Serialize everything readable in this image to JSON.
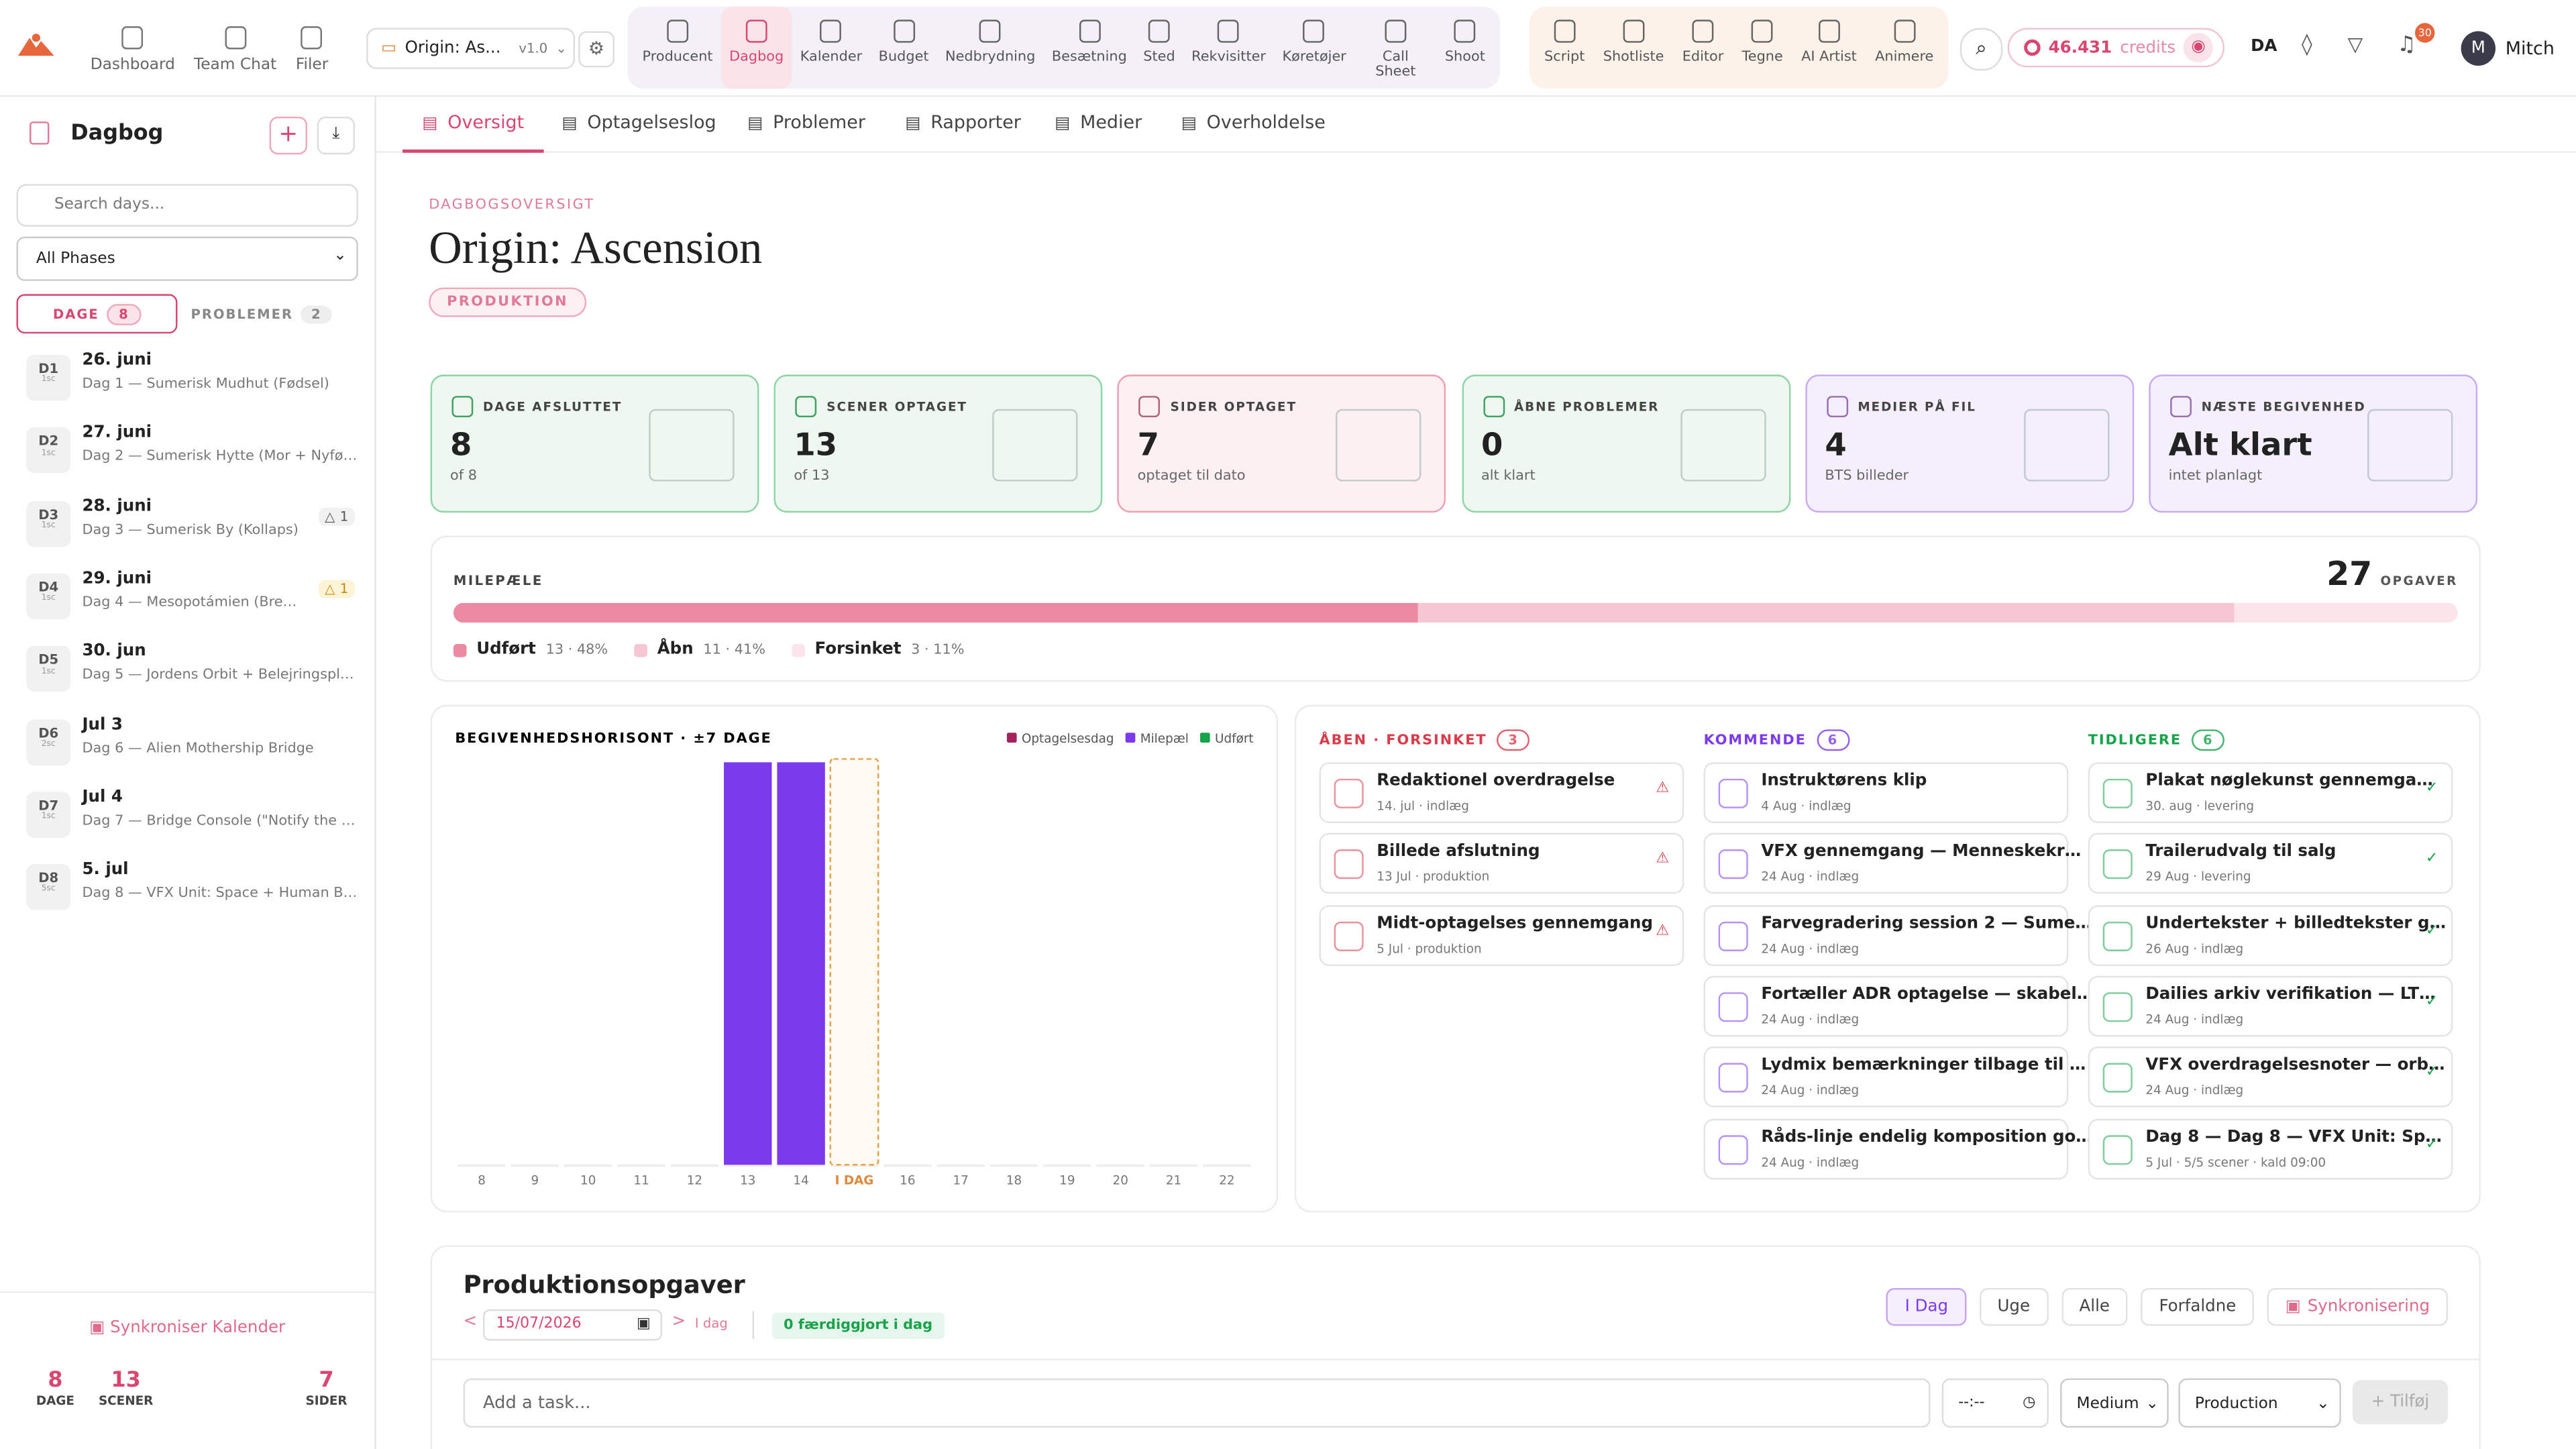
{
  "topnav": {
    "main": [
      "Dashboard",
      "Team Chat",
      "Filer"
    ],
    "project": "Origin: As...",
    "version": "v1.0",
    "tools": [
      "Producent",
      "Dagbog",
      "Kalender",
      "Budget",
      "Nedbrydning",
      "Besætning",
      "Sted",
      "Rekvisitter",
      "Køretøjer",
      "Call Sheet",
      "Shoot"
    ],
    "active_tool": 1,
    "creative": [
      "Script",
      "Shotliste",
      "Editor",
      "Tegne",
      "AI Artist",
      "Animere"
    ],
    "credits": "46.431",
    "credits_label": "credits",
    "language": "DA",
    "notifications": 30,
    "avatar": "M",
    "user": "Mitch"
  },
  "sidebar": {
    "title": "Dagbog",
    "search_placeholder": "Search days...",
    "phase": "All Phases",
    "tabs": [
      {
        "label": "DAGE",
        "count": 8
      },
      {
        "label": "PROBLEMER",
        "count": 2
      }
    ],
    "days": [
      {
        "code": "D1",
        "scenes": "1sc",
        "date": "26. juni",
        "desc": "Dag 1 — Sumerisk Mudhut (Fødsel)"
      },
      {
        "code": "D2",
        "scenes": "1sc",
        "date": "27. juni",
        "desc": "Dag 2 — Sumerisk Hytte (Mor + Nyfø…"
      },
      {
        "code": "D3",
        "scenes": "1sc",
        "date": "28. juni",
        "desc": "Dag 3 — Sumerisk By (Kollaps)",
        "issues": 1
      },
      {
        "code": "D4",
        "scenes": "1sc",
        "date": "29. juni",
        "desc": "Dag 4 — Mesopotámien (Bre…",
        "issues": 1
      },
      {
        "code": "D5",
        "scenes": "1sc",
        "date": "30. jun",
        "desc": "Dag 5 — Jordens Orbit + Belejringspl…"
      },
      {
        "code": "D6",
        "scenes": "2sc",
        "date": "Jul 3",
        "desc": "Dag 6 — Alien Mothership Bridge"
      },
      {
        "code": "D7",
        "scenes": "1sc",
        "date": "Jul 4",
        "desc": "Dag 7 — Bridge Console (\"Notify the …"
      },
      {
        "code": "D8",
        "scenes": "5sc",
        "date": "5. jul",
        "desc": "Dag 8 — VFX Unit: Space + Human B…"
      }
    ],
    "sync": "Synkroniser Kalender",
    "stats": [
      {
        "value": 8,
        "label": "DAGE"
      },
      {
        "value": 13,
        "label": "SCENER"
      },
      {
        "value": 7,
        "label": "SIDER"
      }
    ]
  },
  "subnav": {
    "tabs": [
      "Oversigt",
      "Optagelseslog",
      "Problemer",
      "Rapporter",
      "Medier",
      "Overholdelse"
    ],
    "active": 0
  },
  "header": {
    "eyebrow": "DAGBOGSOVERSIGT",
    "title": "Origin: Ascension",
    "badge": "PRODUKTION"
  },
  "cards": [
    {
      "label": "DAGE AFSLUTTET",
      "value": 8,
      "sub": "of 8",
      "color": "#8fd4a6",
      "bg": "#eef8f1"
    },
    {
      "label": "SCENER OPTAGET",
      "value": 13,
      "sub": "of 13",
      "color": "#8fd4a6",
      "bg": "#eef8f1"
    },
    {
      "label": "SIDER OPTAGET",
      "value": 7,
      "sub": "optaget til dato",
      "color": "#ee9fb1",
      "bg": "#fcf0f3"
    },
    {
      "label": "ÅBNE PROBLEMER",
      "value": 0,
      "sub": "alt klart",
      "color": "#8fd4a6",
      "bg": "#eef8f1"
    },
    {
      "label": "MEDIER PÅ FIL",
      "value": 4,
      "sub": "BTS billeder",
      "color": "#c9aaf2",
      "bg": "#f4effd"
    },
    {
      "label": "NÆSTE BEGIVENHED",
      "value": "Alt klart",
      "sub": "intet planlagt",
      "color": "#c9aaf2",
      "bg": "#f4effd"
    }
  ],
  "milestones": {
    "title": "MILEPÆLE",
    "total": 27,
    "total_label": "OPGAVER",
    "segments": [
      {
        "name": "Udført",
        "value": 13,
        "value_label": "13 · 48%",
        "color": "#ec8aa2"
      },
      {
        "name": "Åbn",
        "value": 11,
        "value_label": "11 · 41%",
        "color": "#f6c6d2"
      },
      {
        "name": "Forsinket",
        "value": 3,
        "value_label": "3 · 11%",
        "color": "#fbe4ea"
      }
    ]
  },
  "chart_data": {
    "type": "bar",
    "title": "BEGIVENHEDSHORISONT · ±7 DAGE",
    "categories": [
      "8",
      "9",
      "10",
      "11",
      "12",
      "13",
      "14",
      "I DAG",
      "16",
      "17",
      "18",
      "19",
      "20",
      "21",
      "22"
    ],
    "highlight_category": 7,
    "ylim": [
      0,
      1
    ],
    "series": [
      {
        "name": "Optagelsesdag",
        "color": "#a3245c",
        "values": [
          0,
          0,
          0,
          0,
          0,
          0,
          0,
          0,
          0,
          0,
          0,
          0,
          0,
          0,
          0
        ]
      },
      {
        "name": "Milepæl",
        "color": "#7c3aed",
        "values": [
          0,
          0,
          0,
          0,
          0,
          1,
          1,
          0,
          0,
          0,
          0,
          0,
          0,
          0,
          0
        ]
      },
      {
        "name": "Udført",
        "color": "#16a34a",
        "values": [
          0,
          0,
          0,
          0,
          0,
          0,
          0,
          0,
          0,
          0,
          0,
          0,
          0,
          0,
          0
        ]
      }
    ]
  },
  "columns": [
    {
      "title": "ÅBEN · FORSINKET",
      "count": 3,
      "color": "#d93b4a",
      "items": [
        {
          "title": "Redaktionel overdragelse",
          "meta": "14. jul · indlæg"
        },
        {
          "title": "Billede afslutning",
          "meta": "13 Jul · produktion"
        },
        {
          "title": "Midt-optagelses gennemgang",
          "meta": "5 Jul · produktion"
        }
      ]
    },
    {
      "title": "KOMMENDE",
      "count": 6,
      "color": "#7c3aed",
      "items": [
        {
          "title": "Instruktørens klip",
          "meta": "4 Aug · indlæg"
        },
        {
          "title": "VFX gennemgang — Menneskekr…",
          "meta": "24 Aug · indlæg"
        },
        {
          "title": "Farvegradering session 2 — Sume…",
          "meta": "24 Aug · indlæg"
        },
        {
          "title": "Fortæller ADR optagelse — skabel…",
          "meta": "24 Aug · indlæg"
        },
        {
          "title": "Lydmix bemærkninger tilbage til …",
          "meta": "24 Aug · indlæg"
        },
        {
          "title": "Råds-linje endelig komposition go…",
          "meta": "24 Aug · indlæg"
        }
      ]
    },
    {
      "title": "TIDLIGERE",
      "count": 6,
      "color": "#16a34a",
      "items": [
        {
          "title": "Plakat nøglekunst gennemga…",
          "meta": "30. aug · levering"
        },
        {
          "title": "Trailerudvalg til salg",
          "meta": "29 Aug · levering"
        },
        {
          "title": "Undertekster + billedtekster g…",
          "meta": "26 Aug · indlæg"
        },
        {
          "title": "Dailies arkiv verifikation — LT…",
          "meta": "24 Aug · indlæg"
        },
        {
          "title": "VFX overdragelsesnoter — orb…",
          "meta": "24 Aug · indlæg"
        },
        {
          "title": "Dag 8 — Dag 8 — VFX Unit: Sp…",
          "meta": "5 Jul · 5/5 scener · kald 09:00"
        }
      ]
    }
  ],
  "tasks": {
    "title": "Produktionsopgaver",
    "prev": "<",
    "date": "15/07/2026",
    "next": ">",
    "today_link": "I dag",
    "done_today": "0 færdiggjort i dag",
    "filters": [
      "I Dag",
      "Uge",
      "Alle",
      "Forfaldne"
    ],
    "sync": "Synkronisering",
    "placeholder": "Add a task...",
    "time": "--:--",
    "priority": "Medium",
    "category": "Production",
    "add": "+ Tilføj"
  }
}
